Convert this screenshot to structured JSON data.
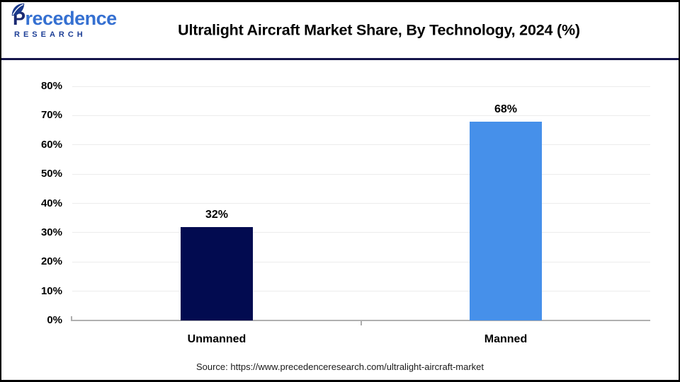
{
  "header": {
    "logo": {
      "brand": "Precedence",
      "sub": "RESEARCH"
    },
    "title": "Ultralight Aircraft Market Share, By Technology, 2024 (%)"
  },
  "chart_data": {
    "type": "bar",
    "title": "Ultralight Aircraft Market Share, By Technology, 2024 (%)",
    "categories": [
      "Unmanned",
      "Manned"
    ],
    "values": [
      32,
      68
    ],
    "value_labels": [
      "32%",
      "68%"
    ],
    "bar_colors": [
      "#020b50",
      "#4690ea"
    ],
    "xlabel": "",
    "ylabel": "",
    "ylim": [
      0,
      80
    ],
    "ytick_step": 10,
    "ytick_labels": [
      "0%",
      "10%",
      "20%",
      "30%",
      "40%",
      "50%",
      "60%",
      "70%",
      "80%"
    ],
    "grid": true,
    "legend": "none"
  },
  "footer": {
    "source": "Source: https://www.precedenceresearch.com/ultralight-aircraft-market"
  },
  "colors": {
    "bar_navy": "#020b50",
    "bar_blue": "#4690ea",
    "header_separator": "#15154a",
    "gridline": "#ececec",
    "axis_line": "#b0b0b0",
    "logo_blue": "#3570d1",
    "logo_dark_p": "#1b2a72",
    "logo_sub": "#1c3e96",
    "text": "#000000"
  }
}
